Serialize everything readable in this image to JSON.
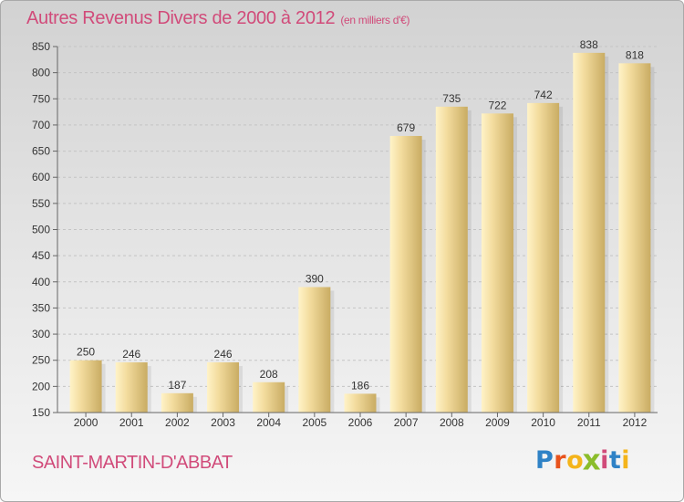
{
  "title": "Autres Revenus Divers de 2000 à 2012",
  "subtitle": "(en milliers d'€)",
  "commune": "SAINT-MARTIN-D'ABBAT",
  "logo": {
    "letters": [
      "P",
      "r",
      "o",
      "x",
      "i",
      "t",
      "i"
    ],
    "colors": [
      "#2f82c6",
      "#e8531d",
      "#f4b41a",
      "#8bbd2b",
      "#d14b7a",
      "#2f82c6",
      "#f4b41a"
    ]
  },
  "colors": {
    "bar_light": "#f5dc9a",
    "bar_dark": "#c9ac63",
    "title": "#d14b7a",
    "grid": "#bcbcbc"
  },
  "chart_data": {
    "type": "bar",
    "title": "Autres Revenus Divers de 2000 à 2012",
    "subtitle": "(en milliers d'€)",
    "categories": [
      "2000",
      "2001",
      "2002",
      "2003",
      "2004",
      "2005",
      "2006",
      "2007",
      "2008",
      "2009",
      "2010",
      "2011",
      "2012"
    ],
    "values": [
      250,
      246,
      187,
      246,
      208,
      390,
      186,
      679,
      735,
      722,
      742,
      838,
      818
    ],
    "ylim": [
      150,
      850
    ],
    "yticks": [
      150,
      200,
      250,
      300,
      350,
      400,
      450,
      500,
      550,
      600,
      650,
      700,
      750,
      800,
      850
    ],
    "grid": true,
    "xlabel": "",
    "ylabel": ""
  }
}
